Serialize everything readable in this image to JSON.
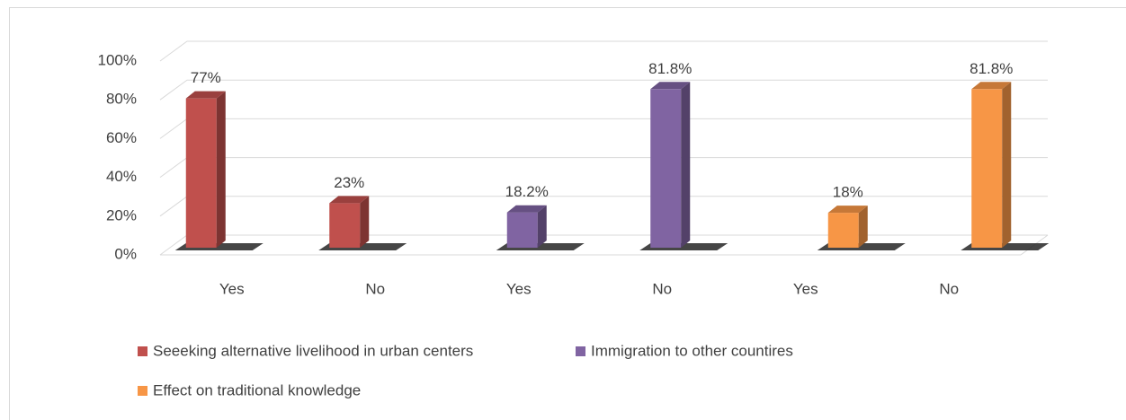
{
  "chart_data": {
    "type": "bar3d",
    "categories": [
      "Yes",
      "No",
      "Yes",
      "No",
      "Yes",
      "No"
    ],
    "series": [
      {
        "name": "Seeeking alternative livelihood in urban centers",
        "color": "#c0504d",
        "values": [
          77,
          23,
          null,
          null,
          null,
          null
        ],
        "value_labels": [
          "77%",
          "23%",
          null,
          null,
          null,
          null
        ]
      },
      {
        "name": "Immigration to other countires",
        "color": "#8064a2",
        "values": [
          null,
          null,
          18.2,
          81.8,
          null,
          null
        ],
        "value_labels": [
          null,
          null,
          "18.2%",
          "81.8%",
          null,
          null
        ]
      },
      {
        "name": "Effect on traditional knowledge",
        "color": "#f79646",
        "values": [
          null,
          null,
          null,
          null,
          18,
          81.8
        ],
        "value_labels": [
          null,
          null,
          null,
          null,
          "18%",
          "81.8%"
        ]
      }
    ],
    "ylim": [
      0,
      100
    ],
    "yticks": [
      {
        "value": 0,
        "label": "0%"
      },
      {
        "value": 20,
        "label": "20%"
      },
      {
        "value": 40,
        "label": "40%"
      },
      {
        "value": 60,
        "label": "60%"
      },
      {
        "value": 80,
        "label": "80%"
      },
      {
        "value": 100,
        "label": "100%"
      }
    ],
    "grid": true
  }
}
